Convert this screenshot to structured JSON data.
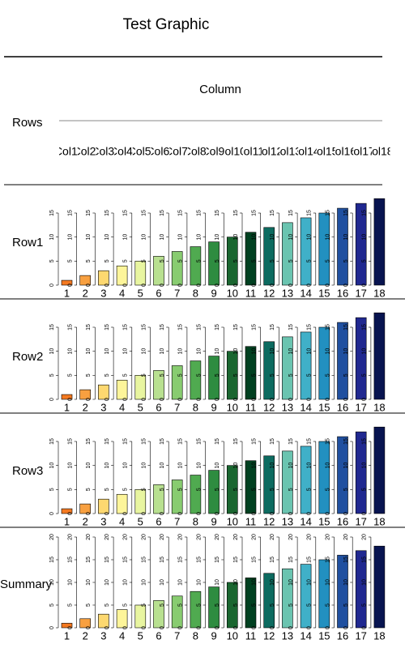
{
  "chart_data": {
    "type": "bar",
    "title": "Test Graphic",
    "column_label": "Column",
    "rows_label": "Rows",
    "column_headers": [
      "Col1",
      "Col2",
      "Col3",
      "Col4",
      "Col5",
      "Col6",
      "Col7",
      "Col8",
      "Col9",
      "Col10",
      "Col11",
      "Col12",
      "Col13",
      "Col14",
      "Col15",
      "Col16",
      "Col17",
      "Col18"
    ],
    "categories": [
      "1",
      "2",
      "3",
      "4",
      "5",
      "6",
      "7",
      "8",
      "9",
      "10",
      "11",
      "12",
      "13",
      "14",
      "15",
      "16",
      "17",
      "18"
    ],
    "colors": [
      "#f47920",
      "#f8a040",
      "#fdd870",
      "#fdf59a",
      "#e8f5a0",
      "#b8e090",
      "#88cc70",
      "#50aa50",
      "#2e8c40",
      "#1a6630",
      "#004020",
      "#0d6b60",
      "#6ac4b0",
      "#40b0c8",
      "#2290c0",
      "#2050a0",
      "#202890",
      "#081450"
    ],
    "panels": [
      {
        "name": "Row1",
        "values": [
          1,
          2,
          3,
          4,
          5,
          6,
          7,
          8,
          9,
          10,
          11,
          12,
          13,
          14,
          15,
          16,
          17,
          18
        ],
        "ylim": [
          0,
          18
        ],
        "yticks": [
          0,
          5,
          10,
          15
        ]
      },
      {
        "name": "Row2",
        "values": [
          1,
          2,
          3,
          4,
          5,
          6,
          7,
          8,
          9,
          10,
          11,
          12,
          13,
          14,
          15,
          16,
          17,
          18
        ],
        "ylim": [
          0,
          18
        ],
        "yticks": [
          0,
          5,
          10,
          15
        ]
      },
      {
        "name": "Row3",
        "values": [
          1,
          2,
          3,
          4,
          5,
          6,
          7,
          8,
          9,
          10,
          11,
          12,
          13,
          14,
          15,
          16,
          17,
          18
        ],
        "ylim": [
          0,
          18
        ],
        "yticks": [
          0,
          5,
          10,
          15
        ]
      },
      {
        "name": "Summary",
        "values": [
          1,
          2,
          3,
          4,
          5,
          6,
          7,
          8,
          9,
          10,
          11,
          12,
          13,
          14,
          15,
          16,
          17,
          18
        ],
        "ylim": [
          0,
          20
        ],
        "yticks": [
          0,
          5,
          10,
          15,
          20
        ]
      }
    ]
  }
}
